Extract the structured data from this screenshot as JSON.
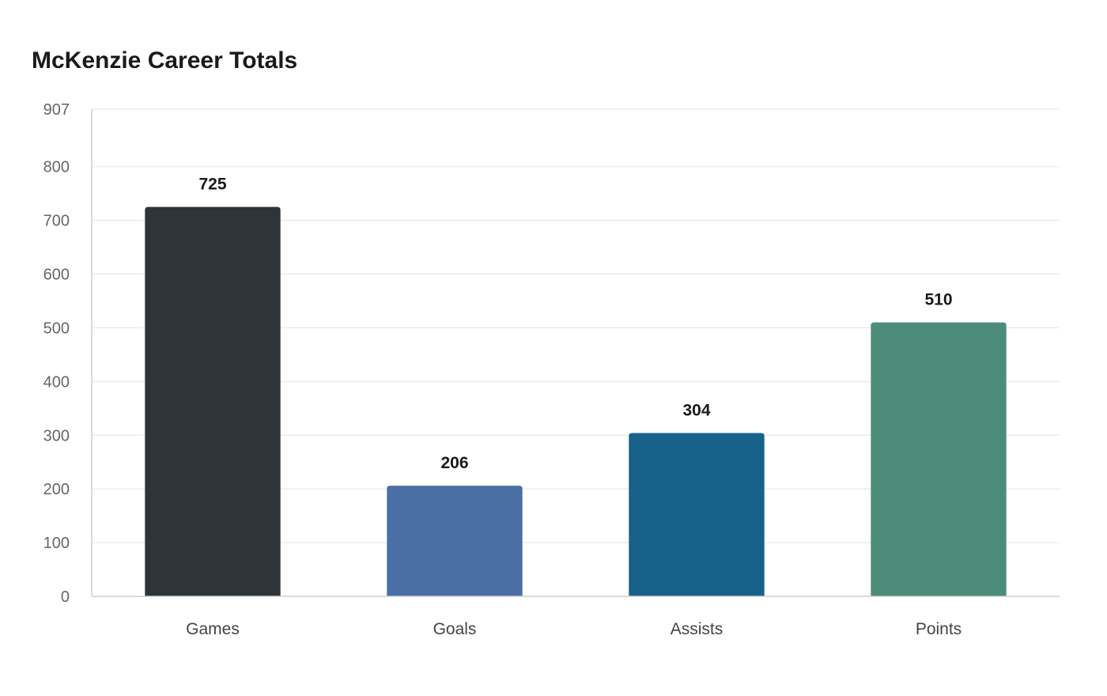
{
  "chart_data": {
    "type": "bar",
    "title": "McKenzie Career Totals",
    "xlabel": "",
    "ylabel": "",
    "categories": [
      "Games",
      "Goals",
      "Assists",
      "Points"
    ],
    "values": [
      725,
      206,
      304,
      510
    ],
    "colors": [
      "#2d3538",
      "#4a6fa5",
      "#186189",
      "#4e8c7a"
    ],
    "ylim": [
      0,
      907
    ],
    "yticks": [
      0,
      100,
      200,
      300,
      400,
      500,
      600,
      700,
      800,
      907
    ],
    "grid": true,
    "legend": false,
    "data_labels": true
  }
}
